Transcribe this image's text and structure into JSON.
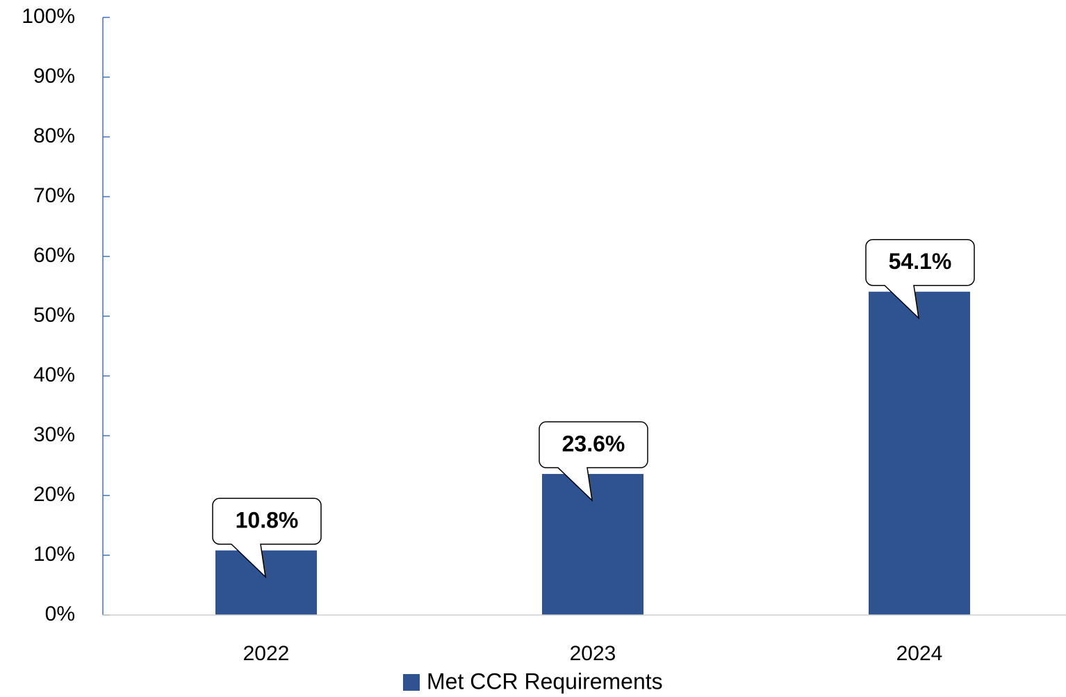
{
  "chart_data": {
    "type": "bar",
    "categories": [
      "2022",
      "2023",
      "2024"
    ],
    "series": [
      {
        "name": "Met CCR Requirements",
        "color": "#2f5391",
        "values": [
          10.8,
          23.6,
          54.1
        ],
        "value_labels": [
          "10.8%",
          "23.6%",
          "54.1%"
        ]
      }
    ],
    "ylim": [
      0,
      100
    ],
    "yticks": [
      {
        "value": 0,
        "label": "0%"
      },
      {
        "value": 10,
        "label": "10%"
      },
      {
        "value": 20,
        "label": "20%"
      },
      {
        "value": 30,
        "label": "30%"
      },
      {
        "value": 40,
        "label": "40%"
      },
      {
        "value": 50,
        "label": "50%"
      },
      {
        "value": 60,
        "label": "60%"
      },
      {
        "value": 70,
        "label": "70%"
      },
      {
        "value": 80,
        "label": "80%"
      },
      {
        "value": 90,
        "label": "90%"
      },
      {
        "value": 100,
        "label": "100%"
      }
    ],
    "legend": "bottom"
  }
}
